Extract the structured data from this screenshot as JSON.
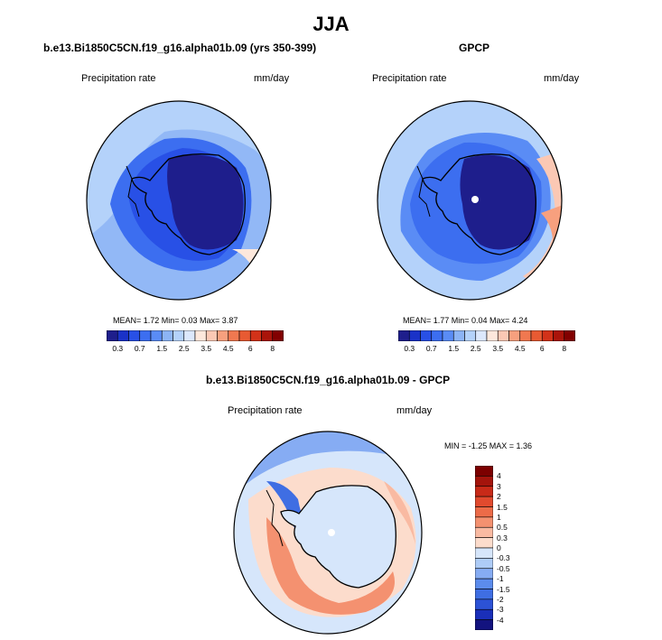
{
  "title": "JJA",
  "colors": {
    "seq": [
      "#1e1e8c",
      "#1a32c8",
      "#2850e6",
      "#3c6ef0",
      "#5a8cf5",
      "#8cb4f5",
      "#b4d2fa",
      "#dce8fc",
      "#fde8dc",
      "#fbc8b4",
      "#f7a07e",
      "#f07850",
      "#e85a32",
      "#d23219",
      "#aa140a",
      "#820000"
    ],
    "diff": [
      "#13137f",
      "#1a2fb9",
      "#2c52d6",
      "#3f6ee3",
      "#5c8ced",
      "#86acf3",
      "#aeccf7",
      "#d6e6fb",
      "#fcdccc",
      "#f9baa2",
      "#f49170",
      "#ec6b48",
      "#e14a2e",
      "#c82a18",
      "#a4140c",
      "#7c0000"
    ]
  },
  "panels": [
    {
      "title": "b.e13.Bi1850C5CN.f19_g16.alpha01b.09 (yrs 350-399)",
      "left_label": "Precipitation rate",
      "right_label": "mm/day",
      "stats": "MEAN=   1.72  Min=   0.03  Max=   3.87",
      "colorbar_ticks": [
        "0.3",
        "0.7",
        "1.5",
        "2.5",
        "3.5",
        "4.5",
        "6",
        "8"
      ]
    },
    {
      "title": "GPCP",
      "left_label": "Precipitation rate",
      "right_label": "mm/day",
      "stats": "MEAN=   1.77  Min=   0.04  Max=   4.24",
      "colorbar_ticks": [
        "0.3",
        "0.7",
        "1.5",
        "2.5",
        "3.5",
        "4.5",
        "6",
        "8"
      ]
    },
    {
      "title": "b.e13.Bi1850C5CN.f19_g16.alpha01b.09 - GPCP",
      "left_label": "Precipitation rate",
      "right_label": "mm/day",
      "stats": "MIN =  -1.25 MAX =   1.36",
      "colorbar_ticks": [
        "4",
        "3",
        "2",
        "1.5",
        "1",
        "0.5",
        "0.3",
        "0",
        "-0.3",
        "-0.5",
        "-1",
        "-1.5",
        "-2",
        "-3",
        "-4"
      ]
    }
  ],
  "chart_data": [
    {
      "type": "heatmap",
      "title": "b.e13.Bi1850C5CN.f19_g16.alpha01b.09 (yrs 350-399)",
      "variable": "Precipitation rate",
      "units": "mm/day",
      "projection": "south polar stereographic",
      "mean": 1.72,
      "min": 0.03,
      "max": 3.87,
      "levels": [
        0.2,
        0.3,
        0.5,
        0.7,
        1,
        1.5,
        2,
        2.5,
        3,
        3.5,
        4,
        4.5,
        5,
        6,
        7,
        8
      ]
    },
    {
      "type": "heatmap",
      "title": "GPCP",
      "variable": "Precipitation rate",
      "units": "mm/day",
      "projection": "south polar stereographic",
      "mean": 1.77,
      "min": 0.04,
      "max": 4.24,
      "levels": [
        0.2,
        0.3,
        0.5,
        0.7,
        1,
        1.5,
        2,
        2.5,
        3,
        3.5,
        4,
        4.5,
        5,
        6,
        7,
        8
      ]
    },
    {
      "type": "heatmap",
      "title": "b.e13.Bi1850C5CN.f19_g16.alpha01b.09 - GPCP",
      "variable": "Precipitation rate",
      "units": "mm/day",
      "projection": "south polar stereographic",
      "min": -1.25,
      "max": 1.36,
      "levels": [
        -4,
        -3,
        -2,
        -1.5,
        -1,
        -0.5,
        -0.3,
        0,
        0.3,
        0.5,
        1,
        1.5,
        2,
        3,
        4
      ]
    }
  ]
}
